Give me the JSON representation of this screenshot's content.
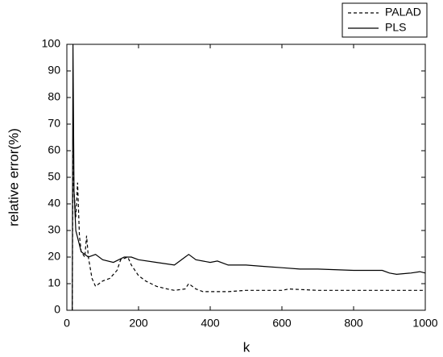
{
  "chart_data": {
    "type": "line",
    "x_label": "k",
    "y_label": "relative error(%)",
    "xlim": [
      0,
      1000
    ],
    "ylim": [
      0,
      100
    ],
    "xticks": [
      0,
      200,
      400,
      600,
      800,
      1000
    ],
    "yticks": [
      0,
      10,
      20,
      30,
      40,
      50,
      60,
      70,
      80,
      90,
      100
    ],
    "legend": "top-right",
    "series": [
      {
        "name": "PALAD",
        "color": "#000000",
        "dash": "4,3",
        "x": [
          15,
          17,
          20,
          25,
          30,
          35,
          40,
          50,
          55,
          60,
          70,
          80,
          90,
          100,
          120,
          140,
          150,
          170,
          180,
          200,
          220,
          250,
          280,
          300,
          330,
          340,
          360,
          380,
          450,
          500,
          600,
          620,
          700,
          1000
        ],
        "values": [
          0,
          60,
          45,
          35,
          48,
          28,
          22,
          20,
          28,
          20,
          12,
          9,
          10,
          11,
          12,
          15,
          19,
          20,
          17,
          13,
          11,
          9,
          8,
          7.5,
          8,
          10,
          8,
          7,
          7,
          7.5,
          7.5,
          8,
          7.5,
          7.5
        ]
      },
      {
        "name": "PLS",
        "color": "#000000",
        "dash": "none",
        "x": [
          15,
          17,
          20,
          25,
          40,
          60,
          80,
          100,
          130,
          160,
          180,
          200,
          250,
          300,
          330,
          340,
          360,
          400,
          420,
          450,
          500,
          550,
          600,
          650,
          700,
          800,
          880,
          900,
          920,
          960,
          985,
          1000
        ],
        "values": [
          0,
          100,
          45,
          30,
          22,
          20,
          21,
          19,
          18,
          20,
          20,
          19,
          18,
          17,
          20,
          21,
          19,
          18,
          18.5,
          17,
          17,
          16.5,
          16,
          15.5,
          15.5,
          15,
          15,
          14,
          13.5,
          14,
          14.5,
          14
        ]
      }
    ]
  }
}
